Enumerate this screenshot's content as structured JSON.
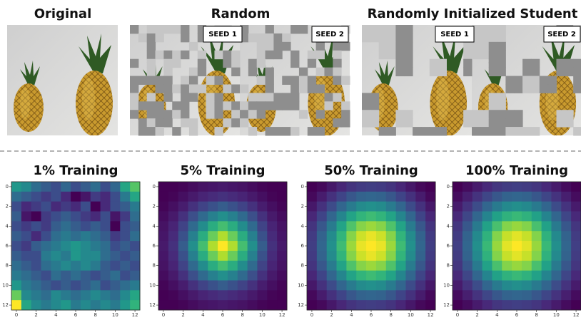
{
  "panels": [
    {
      "title": "Original"
    },
    {
      "title": "Random",
      "labels": [
        "SEED 1",
        "SEED 2"
      ]
    },
    {
      "title": "Randomly Initialized Student",
      "labels": [
        "SEED 1",
        "SEED 2"
      ]
    }
  ],
  "colormap": "viridis",
  "chart_data": [
    {
      "type": "heatmap",
      "title": "1% Training",
      "xlim": [
        -0.5,
        12.5
      ],
      "ylim": [
        12.5,
        -0.5
      ],
      "xticks": [
        0,
        2,
        4,
        6,
        8,
        10,
        12
      ],
      "yticks": [
        0,
        2,
        4,
        6,
        8,
        10,
        12
      ],
      "values": [
        [
          0.55,
          0.5,
          0.4,
          0.35,
          0.3,
          0.38,
          0.3,
          0.35,
          0.4,
          0.3,
          0.38,
          0.6,
          0.72
        ],
        [
          0.4,
          0.35,
          0.3,
          0.25,
          0.3,
          0.2,
          0.1,
          0.15,
          0.25,
          0.2,
          0.3,
          0.45,
          0.6
        ],
        [
          0.3,
          0.2,
          0.25,
          0.3,
          0.2,
          0.25,
          0.2,
          0.3,
          0.1,
          0.2,
          0.3,
          0.35,
          0.45
        ],
        [
          0.35,
          0.15,
          0.1,
          0.25,
          0.3,
          0.35,
          0.3,
          0.25,
          0.2,
          0.3,
          0.15,
          0.25,
          0.4
        ],
        [
          0.3,
          0.25,
          0.3,
          0.25,
          0.35,
          0.4,
          0.35,
          0.3,
          0.35,
          0.3,
          0.1,
          0.3,
          0.35
        ],
        [
          0.35,
          0.3,
          0.2,
          0.3,
          0.4,
          0.45,
          0.4,
          0.45,
          0.4,
          0.35,
          0.25,
          0.3,
          0.4
        ],
        [
          0.3,
          0.25,
          0.35,
          0.4,
          0.45,
          0.5,
          0.55,
          0.5,
          0.45,
          0.4,
          0.3,
          0.35,
          0.3
        ],
        [
          0.35,
          0.3,
          0.3,
          0.45,
          0.5,
          0.45,
          0.55,
          0.5,
          0.5,
          0.4,
          0.35,
          0.3,
          0.35
        ],
        [
          0.4,
          0.35,
          0.3,
          0.4,
          0.45,
          0.5,
          0.45,
          0.5,
          0.45,
          0.35,
          0.3,
          0.35,
          0.3
        ],
        [
          0.45,
          0.4,
          0.35,
          0.3,
          0.4,
          0.35,
          0.4,
          0.35,
          0.3,
          0.35,
          0.4,
          0.3,
          0.35
        ],
        [
          0.55,
          0.45,
          0.4,
          0.35,
          0.3,
          0.35,
          0.3,
          0.35,
          0.4,
          0.3,
          0.35,
          0.4,
          0.45
        ],
        [
          0.75,
          0.5,
          0.45,
          0.4,
          0.5,
          0.45,
          0.4,
          0.45,
          0.5,
          0.45,
          0.4,
          0.5,
          0.6
        ],
        [
          0.95,
          0.6,
          0.5,
          0.45,
          0.5,
          0.55,
          0.45,
          0.5,
          0.45,
          0.5,
          0.45,
          0.55,
          0.65
        ]
      ]
    },
    {
      "type": "heatmap",
      "title": "5% Training",
      "xlim": [
        -0.5,
        12.5
      ],
      "ylim": [
        12.5,
        -0.5
      ],
      "xticks": [
        0,
        2,
        4,
        6,
        8,
        10,
        12
      ],
      "yticks": [
        0,
        2,
        4,
        6,
        8,
        10,
        12
      ],
      "values": [
        [
          0.01,
          0.01,
          0.02,
          0.04,
          0.06,
          0.07,
          0.08,
          0.07,
          0.06,
          0.04,
          0.02,
          0.01,
          0.01
        ],
        [
          0.01,
          0.02,
          0.05,
          0.08,
          0.11,
          0.13,
          0.15,
          0.13,
          0.11,
          0.08,
          0.05,
          0.02,
          0.01
        ],
        [
          0.02,
          0.05,
          0.09,
          0.15,
          0.21,
          0.26,
          0.3,
          0.26,
          0.21,
          0.15,
          0.09,
          0.05,
          0.02
        ],
        [
          0.04,
          0.08,
          0.15,
          0.25,
          0.35,
          0.44,
          0.5,
          0.44,
          0.35,
          0.25,
          0.15,
          0.08,
          0.04
        ],
        [
          0.06,
          0.11,
          0.21,
          0.35,
          0.49,
          0.62,
          0.7,
          0.62,
          0.49,
          0.35,
          0.21,
          0.11,
          0.06
        ],
        [
          0.07,
          0.13,
          0.26,
          0.44,
          0.62,
          0.77,
          0.88,
          0.77,
          0.62,
          0.44,
          0.26,
          0.13,
          0.07
        ],
        [
          0.08,
          0.15,
          0.3,
          0.5,
          0.7,
          0.88,
          1,
          0.88,
          0.7,
          0.5,
          0.3,
          0.15,
          0.08
        ],
        [
          0.07,
          0.13,
          0.26,
          0.44,
          0.62,
          0.77,
          0.88,
          0.77,
          0.62,
          0.44,
          0.26,
          0.13,
          0.07
        ],
        [
          0.06,
          0.11,
          0.21,
          0.35,
          0.49,
          0.62,
          0.7,
          0.62,
          0.49,
          0.35,
          0.21,
          0.11,
          0.06
        ],
        [
          0.04,
          0.08,
          0.15,
          0.25,
          0.35,
          0.44,
          0.5,
          0.44,
          0.35,
          0.25,
          0.15,
          0.08,
          0.04
        ],
        [
          0.02,
          0.05,
          0.09,
          0.15,
          0.21,
          0.26,
          0.3,
          0.26,
          0.21,
          0.15,
          0.09,
          0.05,
          0.02
        ],
        [
          0.01,
          0.02,
          0.05,
          0.08,
          0.11,
          0.13,
          0.15,
          0.13,
          0.11,
          0.08,
          0.05,
          0.02,
          0.01
        ],
        [
          0.01,
          0.01,
          0.02,
          0.04,
          0.06,
          0.07,
          0.08,
          0.07,
          0.06,
          0.04,
          0.02,
          0.01,
          0.01
        ]
      ]
    },
    {
      "type": "heatmap",
      "title": "50% Training",
      "xlim": [
        -0.5,
        12.5
      ],
      "ylim": [
        12.5,
        -0.5
      ],
      "xticks": [
        0,
        2,
        4,
        6,
        8,
        10,
        12
      ],
      "yticks": [
        0,
        2,
        4,
        6,
        8,
        10,
        12
      ],
      "values": [
        [
          0.08,
          0.1,
          0.14,
          0.18,
          0.22,
          0.24,
          0.25,
          0.24,
          0.22,
          0.18,
          0.14,
          0.1,
          0.08
        ],
        [
          0.1,
          0.15,
          0.21,
          0.27,
          0.33,
          0.37,
          0.38,
          0.37,
          0.33,
          0.27,
          0.21,
          0.15,
          0.1
        ],
        [
          0.14,
          0.21,
          0.29,
          0.38,
          0.46,
          0.52,
          0.54,
          0.52,
          0.46,
          0.38,
          0.29,
          0.21,
          0.14
        ],
        [
          0.18,
          0.27,
          0.38,
          0.5,
          0.61,
          0.68,
          0.71,
          0.68,
          0.61,
          0.5,
          0.38,
          0.27,
          0.18
        ],
        [
          0.22,
          0.33,
          0.46,
          0.61,
          0.74,
          0.83,
          0.86,
          0.83,
          0.74,
          0.61,
          0.46,
          0.33,
          0.22
        ],
        [
          0.24,
          0.37,
          0.52,
          0.68,
          0.83,
          0.93,
          0.97,
          0.93,
          0.83,
          0.68,
          0.52,
          0.37,
          0.24
        ],
        [
          0.25,
          0.38,
          0.54,
          0.71,
          0.86,
          0.97,
          1,
          0.97,
          0.86,
          0.71,
          0.54,
          0.38,
          0.25
        ],
        [
          0.24,
          0.37,
          0.52,
          0.68,
          0.83,
          0.93,
          0.97,
          0.93,
          0.83,
          0.68,
          0.52,
          0.37,
          0.24
        ],
        [
          0.22,
          0.33,
          0.46,
          0.61,
          0.74,
          0.83,
          0.86,
          0.83,
          0.74,
          0.61,
          0.46,
          0.33,
          0.22
        ],
        [
          0.18,
          0.27,
          0.38,
          0.5,
          0.61,
          0.68,
          0.71,
          0.68,
          0.61,
          0.5,
          0.38,
          0.27,
          0.18
        ],
        [
          0.14,
          0.21,
          0.29,
          0.38,
          0.46,
          0.52,
          0.54,
          0.52,
          0.46,
          0.38,
          0.29,
          0.21,
          0.14
        ],
        [
          0.1,
          0.15,
          0.21,
          0.27,
          0.33,
          0.37,
          0.38,
          0.37,
          0.33,
          0.27,
          0.21,
          0.15,
          0.1
        ],
        [
          0.08,
          0.1,
          0.14,
          0.18,
          0.22,
          0.24,
          0.25,
          0.24,
          0.22,
          0.18,
          0.14,
          0.1,
          0.08
        ]
      ]
    },
    {
      "type": "heatmap",
      "title": "100% Training",
      "xlim": [
        -0.5,
        12.5
      ],
      "ylim": [
        12.5,
        -0.5
      ],
      "xticks": [
        0,
        2,
        4,
        6,
        8,
        10,
        12
      ],
      "yticks": [
        0,
        2,
        4,
        6,
        8,
        10,
        12
      ],
      "values": [
        [
          0.05,
          0.08,
          0.12,
          0.16,
          0.2,
          0.22,
          0.23,
          0.22,
          0.2,
          0.16,
          0.12,
          0.08,
          0.05
        ],
        [
          0.08,
          0.13,
          0.19,
          0.25,
          0.31,
          0.35,
          0.36,
          0.35,
          0.31,
          0.25,
          0.19,
          0.13,
          0.08
        ],
        [
          0.12,
          0.19,
          0.27,
          0.36,
          0.44,
          0.5,
          0.52,
          0.5,
          0.44,
          0.36,
          0.27,
          0.19,
          0.12
        ],
        [
          0.16,
          0.25,
          0.36,
          0.48,
          0.59,
          0.66,
          0.69,
          0.66,
          0.59,
          0.48,
          0.36,
          0.25,
          0.16
        ],
        [
          0.2,
          0.31,
          0.44,
          0.59,
          0.72,
          0.82,
          0.85,
          0.82,
          0.72,
          0.59,
          0.44,
          0.31,
          0.2
        ],
        [
          0.22,
          0.35,
          0.5,
          0.66,
          0.82,
          0.92,
          0.96,
          0.92,
          0.82,
          0.66,
          0.5,
          0.35,
          0.22
        ],
        [
          0.23,
          0.36,
          0.52,
          0.69,
          0.85,
          0.96,
          1,
          0.96,
          0.85,
          0.69,
          0.52,
          0.36,
          0.23
        ],
        [
          0.22,
          0.35,
          0.5,
          0.66,
          0.82,
          0.92,
          0.96,
          0.92,
          0.82,
          0.66,
          0.5,
          0.35,
          0.22
        ],
        [
          0.2,
          0.31,
          0.44,
          0.59,
          0.72,
          0.82,
          0.85,
          0.82,
          0.72,
          0.59,
          0.44,
          0.31,
          0.2
        ],
        [
          0.16,
          0.25,
          0.36,
          0.48,
          0.59,
          0.66,
          0.69,
          0.66,
          0.59,
          0.48,
          0.36,
          0.25,
          0.16
        ],
        [
          0.12,
          0.19,
          0.27,
          0.36,
          0.44,
          0.5,
          0.52,
          0.5,
          0.44,
          0.36,
          0.27,
          0.19,
          0.12
        ],
        [
          0.08,
          0.13,
          0.19,
          0.25,
          0.31,
          0.35,
          0.36,
          0.35,
          0.31,
          0.25,
          0.19,
          0.13,
          0.08
        ],
        [
          0.05,
          0.08,
          0.12,
          0.16,
          0.2,
          0.22,
          0.23,
          0.22,
          0.2,
          0.16,
          0.12,
          0.08,
          0.05
        ]
      ]
    }
  ]
}
